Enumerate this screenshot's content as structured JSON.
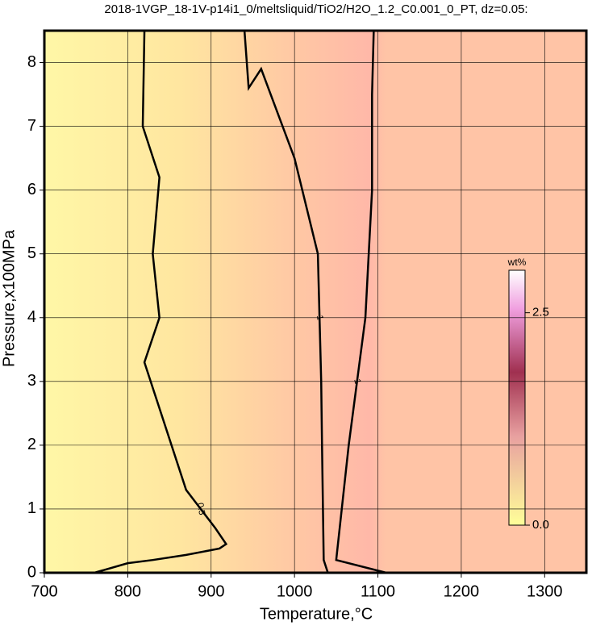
{
  "chart_data": {
    "type": "contour",
    "title": "2018-1VGP_18-1V-p14i1_0/meltsliquid/TiO2/H2O_1.2_C0.001_0_PT, dz=0.05:",
    "xlabel": "Temperature,°C",
    "ylabel": "Pressure,x100MPa",
    "xlim": [
      700,
      1350
    ],
    "ylim": [
      0,
      8.5
    ],
    "xticks": [
      700,
      800,
      900,
      1000,
      1100,
      1200,
      1300
    ],
    "yticks": [
      0,
      1,
      2,
      3,
      4,
      5,
      6,
      7,
      8
    ],
    "grid": true,
    "series": [
      {
        "level": 0.5,
        "color": "#000000",
        "x": [
          760,
          800,
          830,
          870,
          910,
          918,
          905,
          870,
          820,
          838,
          830,
          838,
          818,
          820
        ],
        "y": [
          0,
          0.15,
          0.2,
          0.28,
          0.38,
          0.45,
          0.7,
          1.3,
          3.3,
          4,
          5,
          6.2,
          7,
          8.5
        ]
      },
      {
        "level": 1,
        "color": "#000000",
        "x": [
          1040,
          1035,
          1033,
          1032,
          1028,
          1000,
          960,
          945,
          940
        ],
        "y": [
          0,
          0.2,
          2,
          3,
          5,
          6.5,
          7.9,
          7.6,
          8.5
        ]
      },
      {
        "level": 1,
        "color": "#000000",
        "x": [
          1110,
          1050,
          1065,
          1085,
          1093,
          1093,
          1095
        ],
        "y": [
          0,
          0.2,
          2,
          4,
          6,
          7.5,
          8.5
        ]
      }
    ],
    "colorbar": {
      "label": "wt%",
      "clim": [
        0,
        3
      ],
      "ticks": [
        {
          "value": 0,
          "label": "0.0"
        },
        {
          "value": 2.5,
          "label": "2.5"
        }
      ]
    }
  }
}
